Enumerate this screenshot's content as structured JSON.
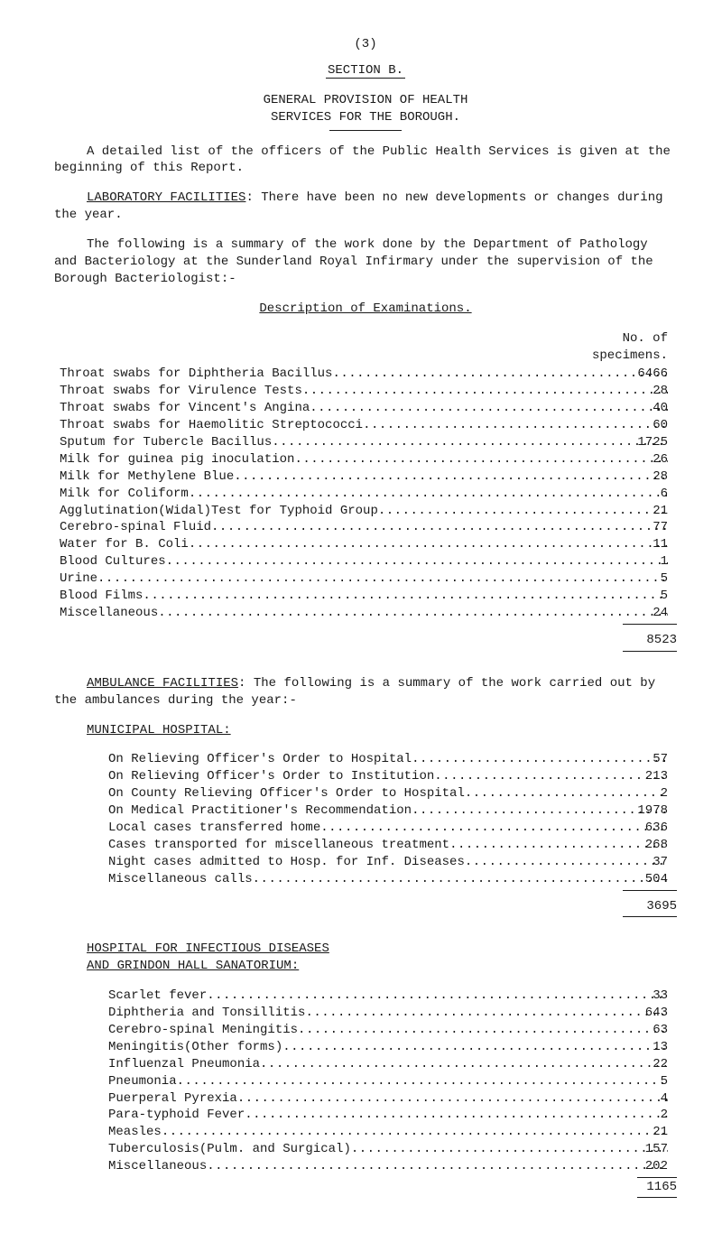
{
  "page_number_label": "(3)",
  "section_title": "SECTION  B.",
  "heading1": "GENERAL PROVISION OF HEALTH",
  "heading2": "SERVICES FOR THE BOROUGH.",
  "para1": "A detailed list of the officers of the Public Health Services is given at the beginning of this Report.",
  "lab_heading": "LABORATORY FACILITIES",
  "lab_tail": ":    There have been no new developments or changes during the year.",
  "para3": "The following is a summary of the work done by the Department of Pathology and Bacteriology at the Sunderland Royal Infirmary under the supervision of the Borough Bacteriologist:-",
  "desc_exam": "Description of Examinations.",
  "spec_header1": "No. of",
  "spec_header2": "specimens.",
  "exam_rows": [
    {
      "label": "Throat swabs for Diphtheria Bacillus",
      "value": "6466"
    },
    {
      "label": "Throat swabs for Virulence Tests",
      "value": "28"
    },
    {
      "label": "Throat swabs for Vincent's Angina",
      "value": "40"
    },
    {
      "label": "Throat swabs for Haemolitic Streptococci",
      "value": "60"
    },
    {
      "label": "Sputum for Tubercle Bacillus",
      "value": "1725"
    },
    {
      "label": "Milk for guinea pig inoculation",
      "value": "26"
    },
    {
      "label": "Milk for Methylene Blue",
      "value": "28"
    },
    {
      "label": "Milk for Coliform",
      "value": "6"
    },
    {
      "label": "Agglutination(Widal)Test for Typhoid Group",
      "value": "21"
    },
    {
      "label": "Cerebro-spinal Fluid",
      "value": "77"
    },
    {
      "label": "Water for B. Coli",
      "value": "11"
    },
    {
      "label": "Blood Cultures",
      "value": "1"
    },
    {
      "label": "Urine",
      "value": "5"
    },
    {
      "label": "Blood Films",
      "value": "5"
    },
    {
      "label": "Miscellaneous",
      "value": "24"
    }
  ],
  "exam_total": "8523",
  "amb_heading": "AMBULANCE FACILITIES",
  "amb_tail": ":  The following is a summary of the work carried out by the ambulances during the year:-",
  "muni_heading": "MUNICIPAL HOSPITAL:",
  "muni_rows": [
    {
      "label": "On Relieving Officer's Order to Hospital",
      "value": "57"
    },
    {
      "label": "On Relieving Officer's Order to Institution",
      "value": "213"
    },
    {
      "label": "On County Relieving Officer's Order to Hospital",
      "value": "2"
    },
    {
      "label": "On Medical Practitioner's Recommendation",
      "value": "1978"
    },
    {
      "label": "Local cases transferred home",
      "value": "636"
    },
    {
      "label": "Cases transported for miscellaneous treatment",
      "value": "268"
    },
    {
      "label": "Night cases admitted to Hosp. for Inf. Diseases",
      "value": "37"
    },
    {
      "label": "Miscellaneous calls",
      "value": "504"
    }
  ],
  "muni_total": "3695",
  "hosp_heading1": "HOSPITAL FOR INFECTIOUS DISEASES",
  "hosp_heading2": "AND GRINDON HALL SANATORIUM:",
  "hosp_rows": [
    {
      "label": "Scarlet fever",
      "value": "33"
    },
    {
      "label": "Diphtheria and Tonsillitis",
      "value": "643"
    },
    {
      "label": "Cerebro-spinal Meningitis",
      "value": "63"
    },
    {
      "label": "Meningitis(Other forms)",
      "value": "13"
    },
    {
      "label": "Influenzal Pneumonia",
      "value": "22"
    },
    {
      "label": "Pneumonia",
      "value": "5"
    },
    {
      "label": "Puerperal Pyrexia",
      "value": "4"
    },
    {
      "label": "Para-typhoid Fever",
      "value": "2"
    },
    {
      "label": "Measles",
      "value": "21"
    },
    {
      "label": "Tuberculosis(Pulm. and Surgical)",
      "value": "157"
    },
    {
      "label": "Miscellaneous",
      "value": "202"
    }
  ],
  "hosp_total": "1165"
}
